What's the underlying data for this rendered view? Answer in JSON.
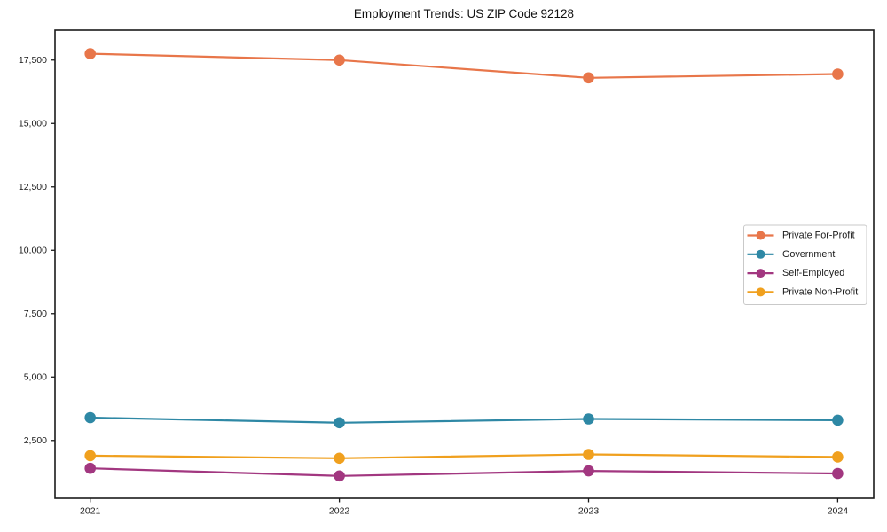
{
  "window": {
    "background_color": "#ffffff"
  },
  "chart_data": {
    "type": "line",
    "title": "Employment Trends: US ZIP Code 92128",
    "xlabel": "",
    "ylabel": "",
    "grid": false,
    "legend_position": "center-right",
    "x": [
      2021,
      2022,
      2023,
      2024
    ],
    "x_tick_labels": [
      "2021",
      "2022",
      "2023",
      "2024"
    ],
    "y_ticks": [
      2500,
      5000,
      7500,
      10000,
      12500,
      15000,
      17500
    ],
    "y_tick_labels": [
      "2,500",
      "5,000",
      "7,500",
      "10,000",
      "12,500",
      "15,000",
      "17,500"
    ],
    "ylim": [
      220,
      18680
    ],
    "series": [
      {
        "name": "Private For-Profit",
        "color": "#e8764a",
        "values": [
          17750,
          17500,
          16800,
          16950
        ]
      },
      {
        "name": "Government",
        "color": "#2e88a5",
        "values": [
          3400,
          3200,
          3350,
          3300
        ]
      },
      {
        "name": "Self-Employed",
        "color": "#a23780",
        "values": [
          1400,
          1100,
          1300,
          1200
        ]
      },
      {
        "name": "Private Non-Profit",
        "color": "#f0a01e",
        "values": [
          1900,
          1800,
          1950,
          1850
        ]
      }
    ],
    "marker": "circle",
    "axis_color": "#1a1a1a",
    "legend_border_color": "#c9c9c9",
    "legend_background_color": "#ffffff"
  }
}
